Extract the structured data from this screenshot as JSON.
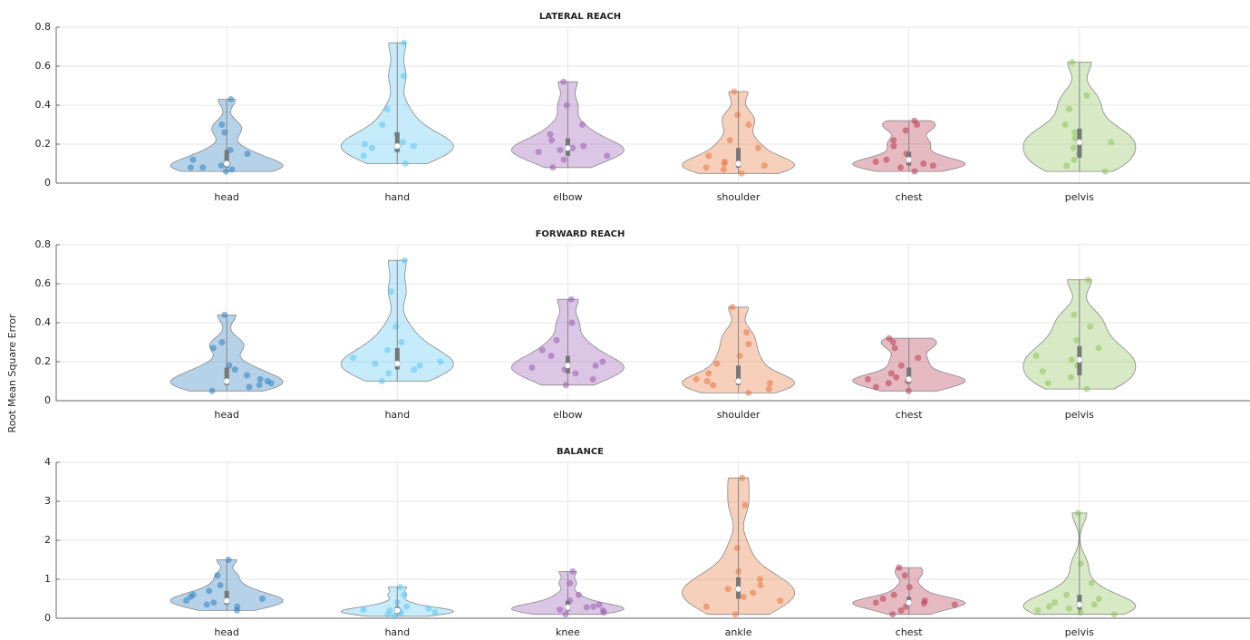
{
  "ylabel": "Root Mean Square Error",
  "chart_data": [
    {
      "type": "violin",
      "title": "LATERAL REACH",
      "categories": [
        "head",
        "hand",
        "elbow",
        "shoulder",
        "chest",
        "pelvis"
      ],
      "colors": [
        "#2e7fc0",
        "#5cc6f2",
        "#9b5bb5",
        "#e8773f",
        "#b83a52",
        "#8cc45a"
      ],
      "ylim": [
        0,
        0.8
      ],
      "yticks": [
        0,
        0.2,
        0.4,
        0.6,
        0.8
      ],
      "grid": true,
      "points": [
        [
          0.06,
          0.07,
          0.08,
          0.08,
          0.09,
          0.1,
          0.12,
          0.15,
          0.17,
          0.26,
          0.3,
          0.43
        ],
        [
          0.1,
          0.14,
          0.17,
          0.18,
          0.19,
          0.2,
          0.21,
          0.25,
          0.3,
          0.38,
          0.55,
          0.72
        ],
        [
          0.08,
          0.12,
          0.14,
          0.16,
          0.17,
          0.18,
          0.19,
          0.22,
          0.25,
          0.3,
          0.4,
          0.52
        ],
        [
          0.05,
          0.07,
          0.08,
          0.09,
          0.1,
          0.11,
          0.14,
          0.18,
          0.22,
          0.3,
          0.35,
          0.47
        ],
        [
          0.06,
          0.08,
          0.09,
          0.1,
          0.11,
          0.12,
          0.15,
          0.19,
          0.22,
          0.27,
          0.3,
          0.32
        ],
        [
          0.06,
          0.09,
          0.12,
          0.15,
          0.18,
          0.21,
          0.23,
          0.26,
          0.3,
          0.38,
          0.45,
          0.62
        ]
      ],
      "medians": [
        0.1,
        0.19,
        0.18,
        0.1,
        0.12,
        0.21
      ],
      "q1": [
        0.08,
        0.16,
        0.14,
        0.08,
        0.09,
        0.13
      ],
      "q3": [
        0.17,
        0.26,
        0.23,
        0.18,
        0.16,
        0.28
      ]
    },
    {
      "type": "violin",
      "title": "FORWARD REACH",
      "categories": [
        "head",
        "hand",
        "elbow",
        "shoulder",
        "chest",
        "pelvis"
      ],
      "colors": [
        "#2e7fc0",
        "#5cc6f2",
        "#9b5bb5",
        "#e8773f",
        "#b83a52",
        "#8cc45a"
      ],
      "ylim": [
        0,
        0.8
      ],
      "yticks": [
        0,
        0.2,
        0.4,
        0.6,
        0.8
      ],
      "grid": true,
      "points": [
        [
          0.05,
          0.07,
          0.08,
          0.09,
          0.1,
          0.11,
          0.13,
          0.16,
          0.18,
          0.27,
          0.3,
          0.44
        ],
        [
          0.1,
          0.14,
          0.16,
          0.18,
          0.19,
          0.2,
          0.22,
          0.26,
          0.3,
          0.38,
          0.56,
          0.72
        ],
        [
          0.08,
          0.11,
          0.14,
          0.16,
          0.17,
          0.18,
          0.2,
          0.23,
          0.26,
          0.31,
          0.4,
          0.52
        ],
        [
          0.04,
          0.06,
          0.08,
          0.09,
          0.1,
          0.11,
          0.14,
          0.19,
          0.23,
          0.29,
          0.35,
          0.48
        ],
        [
          0.05,
          0.07,
          0.09,
          0.1,
          0.11,
          0.12,
          0.14,
          0.18,
          0.22,
          0.27,
          0.3,
          0.32
        ],
        [
          0.06,
          0.09,
          0.12,
          0.15,
          0.18,
          0.21,
          0.23,
          0.27,
          0.31,
          0.38,
          0.44,
          0.62
        ]
      ],
      "medians": [
        0.1,
        0.19,
        0.18,
        0.1,
        0.11,
        0.21
      ],
      "q1": [
        0.08,
        0.16,
        0.14,
        0.08,
        0.09,
        0.13
      ],
      "q3": [
        0.17,
        0.27,
        0.23,
        0.18,
        0.17,
        0.28
      ]
    },
    {
      "type": "violin",
      "title": "BALANCE",
      "categories": [
        "head",
        "hand",
        "knee",
        "ankle",
        "chest",
        "pelvis"
      ],
      "colors": [
        "#2e7fc0",
        "#5cc6f2",
        "#9b5bb5",
        "#e8773f",
        "#b83a52",
        "#8cc45a"
      ],
      "ylim": [
        0,
        4
      ],
      "yticks": [
        0,
        1,
        2,
        3,
        4
      ],
      "grid": true,
      "points": [
        [
          0.2,
          0.3,
          0.35,
          0.4,
          0.45,
          0.5,
          0.55,
          0.6,
          0.7,
          0.85,
          1.1,
          1.5
        ],
        [
          0.05,
          0.1,
          0.12,
          0.15,
          0.18,
          0.2,
          0.22,
          0.25,
          0.3,
          0.4,
          0.6,
          0.8
        ],
        [
          0.1,
          0.15,
          0.2,
          0.22,
          0.25,
          0.28,
          0.3,
          0.35,
          0.45,
          0.6,
          0.9,
          1.2
        ],
        [
          0.1,
          0.3,
          0.45,
          0.55,
          0.65,
          0.75,
          0.85,
          1.0,
          1.2,
          1.8,
          2.9,
          3.6
        ],
        [
          0.1,
          0.2,
          0.3,
          0.35,
          0.38,
          0.4,
          0.45,
          0.5,
          0.6,
          0.8,
          1.1,
          1.3
        ],
        [
          0.1,
          0.15,
          0.2,
          0.25,
          0.3,
          0.35,
          0.4,
          0.5,
          0.6,
          0.9,
          1.4,
          2.7
        ]
      ],
      "medians": [
        0.45,
        0.2,
        0.28,
        0.75,
        0.4,
        0.35
      ],
      "q1": [
        0.35,
        0.12,
        0.2,
        0.5,
        0.32,
        0.22
      ],
      "q3": [
        0.7,
        0.3,
        0.45,
        1.05,
        0.55,
        0.6
      ]
    }
  ]
}
